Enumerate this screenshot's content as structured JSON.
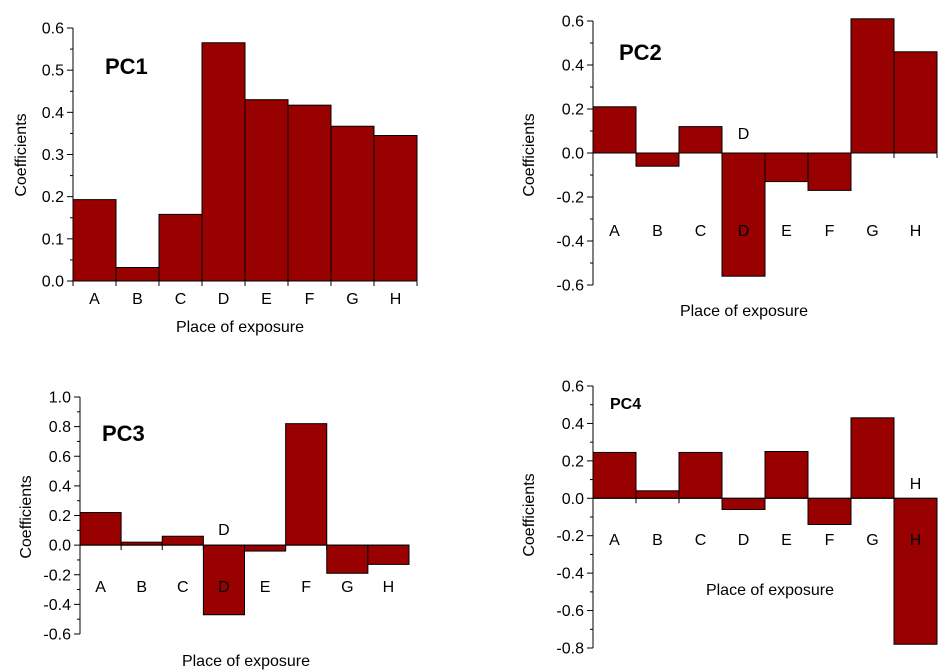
{
  "colors": {
    "bar": "#990000",
    "bar_stroke": "#000000"
  },
  "chart_data": [
    {
      "type": "bar",
      "title": "PC1",
      "xlabel": "Place of exposure",
      "ylabel": "Coefficients",
      "categories": [
        "A",
        "B",
        "C",
        "D",
        "E",
        "F",
        "G",
        "H"
      ],
      "values": [
        0.193,
        0.032,
        0.158,
        0.565,
        0.43,
        0.417,
        0.367,
        0.345
      ],
      "ylim": [
        0,
        0.6
      ],
      "yticks": [
        0,
        0.1,
        0.2,
        0.3,
        0.4,
        0.5,
        0.6
      ],
      "ytick_labels": [
        "0.0",
        "0.1",
        "0.2",
        "0.3",
        "0.4",
        "0.5",
        "0.6"
      ],
      "inner_labels": [],
      "grid": false
    },
    {
      "type": "bar",
      "title": "PC2",
      "xlabel": "Place of exposure",
      "ylabel": "Coefficients",
      "categories": [
        "A",
        "B",
        "C",
        "D",
        "E",
        "F",
        "G",
        "H"
      ],
      "values": [
        0.21,
        -0.06,
        0.12,
        -0.56,
        -0.13,
        -0.17,
        0.61,
        0.46
      ],
      "ylim": [
        -0.6,
        0.6
      ],
      "yticks": [
        -0.6,
        -0.4,
        -0.2,
        0,
        0.2,
        0.4,
        0.6
      ],
      "ytick_labels": [
        "-0.6",
        "-0.4",
        "-0.2",
        "0.0",
        "0.2",
        "0.4",
        "0.6"
      ],
      "inner_labels": [
        {
          "category": "D",
          "text": "D"
        }
      ],
      "grid": false
    },
    {
      "type": "bar",
      "title": "PC3",
      "xlabel": "Place of exposure",
      "ylabel": "Coefficients",
      "categories": [
        "A",
        "B",
        "C",
        "D",
        "E",
        "F",
        "G",
        "H"
      ],
      "values": [
        0.22,
        0.02,
        0.06,
        -0.47,
        -0.04,
        0.82,
        -0.19,
        -0.13
      ],
      "ylim": [
        -0.6,
        1.0
      ],
      "yticks": [
        -0.6,
        -0.4,
        -0.2,
        0,
        0.2,
        0.4,
        0.6,
        0.8,
        1.0
      ],
      "ytick_labels": [
        "-0.6",
        "-0.4",
        "-0.2",
        "0.0",
        "0.2",
        "0.4",
        "0.6",
        "0.8",
        "1.0"
      ],
      "inner_labels": [
        {
          "category": "D",
          "text": "D"
        }
      ],
      "grid": false
    },
    {
      "type": "bar",
      "title": "PC4",
      "xlabel": "Place of exposure",
      "ylabel": "Coefficients",
      "categories": [
        "A",
        "B",
        "C",
        "D",
        "E",
        "F",
        "G",
        "H"
      ],
      "values": [
        0.245,
        0.04,
        0.245,
        -0.06,
        0.25,
        -0.14,
        0.43,
        -0.78
      ],
      "ylim": [
        -0.8,
        0.6
      ],
      "yticks": [
        -0.8,
        -0.6,
        -0.4,
        -0.2,
        0,
        0.2,
        0.4,
        0.6
      ],
      "ytick_labels": [
        "-0.8",
        "-0.6",
        "-0.4",
        "-0.2",
        "0.0",
        "0.2",
        "0.4",
        "0.6"
      ],
      "inner_labels": [
        {
          "category": "H",
          "text": "H"
        }
      ],
      "grid": false
    }
  ]
}
